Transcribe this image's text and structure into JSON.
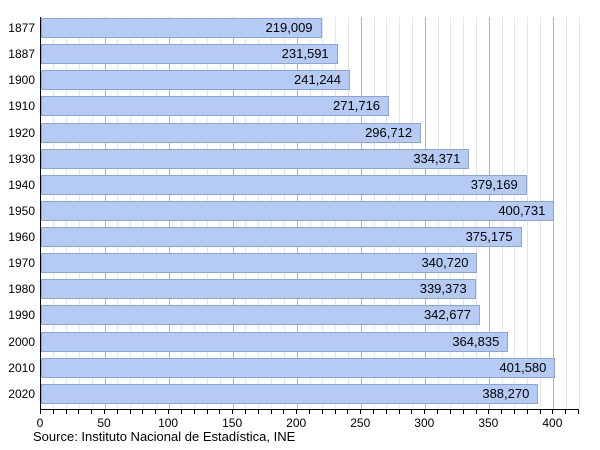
{
  "chart_data": {
    "type": "bar",
    "orientation": "horizontal",
    "title": "",
    "xlabel": "",
    "ylabel": "",
    "categories": [
      "1877",
      "1887",
      "1900",
      "1910",
      "1920",
      "1930",
      "1940",
      "1950",
      "1960",
      "1970",
      "1980",
      "1990",
      "2000",
      "2010",
      "2020"
    ],
    "values": [
      219009,
      231591,
      241244,
      271716,
      296712,
      334371,
      379169,
      400731,
      375175,
      340720,
      339373,
      342677,
      364835,
      401580,
      388270
    ],
    "value_labels": [
      "219,009",
      "231,591",
      "241,244",
      "271,716",
      "296,712",
      "334,371",
      "379,169",
      "400,731",
      "375,175",
      "340,720",
      "339,373",
      "342,677",
      "364,835",
      "401,580",
      "388,270"
    ],
    "x_axis": {
      "min": 0,
      "max": 420,
      "major_tick_step": 50,
      "minor_tick_step": 10,
      "major_tick_labels": [
        "0",
        "50",
        "100",
        "150",
        "200",
        "250",
        "300",
        "350",
        "400"
      ],
      "value_divisor_for_axis": 1000
    },
    "grid": true,
    "legend": null,
    "source": "Source: Instituto Nacional de Estadística, INE",
    "colors": {
      "bar_fill": "#b5cbf3",
      "bar_border": "#87a5dc",
      "grid_minor": "#e5e5e5",
      "grid_major": "#b3b3b3",
      "axis_line": "#000000",
      "text": "#000000",
      "background": "#ffffff"
    }
  }
}
